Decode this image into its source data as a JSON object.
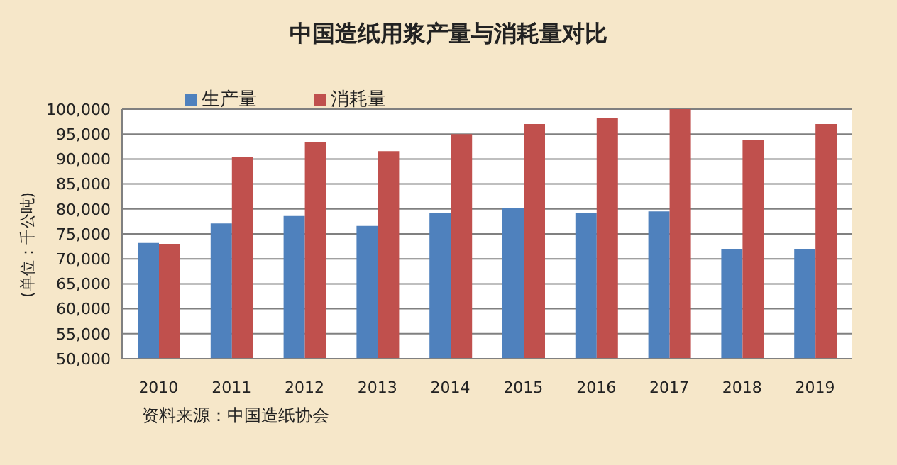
{
  "chart_data": {
    "type": "bar",
    "title": "中国造纸用浆产量与消耗量对比",
    "ylabel": "(单位：千公吨)",
    "annotations": [
      "资料来源：中国造纸协会"
    ],
    "categories": [
      "2010",
      "2011",
      "2012",
      "2013",
      "2014",
      "2015",
      "2016",
      "2017",
      "2018",
      "2019"
    ],
    "series": [
      {
        "name": "生产量",
        "color": "#4f81bd",
        "values": [
          73200,
          77100,
          78600,
          76600,
          79200,
          80200,
          79200,
          79500,
          72000,
          72000
        ]
      },
      {
        "name": "消耗量",
        "color": "#c0504d",
        "values": [
          73000,
          90500,
          93400,
          91600,
          95000,
          97000,
          98300,
          100000,
          93900,
          97000
        ]
      }
    ],
    "ylim": [
      50000,
      100000
    ],
    "yticks": [
      {
        "value": 50000,
        "label": "50,000"
      },
      {
        "value": 55000,
        "label": "55,000"
      },
      {
        "value": 60000,
        "label": "60,000"
      },
      {
        "value": 65000,
        "label": "65,000"
      },
      {
        "value": 70000,
        "label": "70,000"
      },
      {
        "value": 75000,
        "label": "75,000"
      },
      {
        "value": 80000,
        "label": "80,000"
      },
      {
        "value": 85000,
        "label": "85,000"
      },
      {
        "value": 90000,
        "label": "90,000"
      },
      {
        "value": 95000,
        "label": "95,000"
      },
      {
        "value": 100000,
        "label": "100,000"
      }
    ],
    "grid": "y",
    "legend": "top"
  }
}
